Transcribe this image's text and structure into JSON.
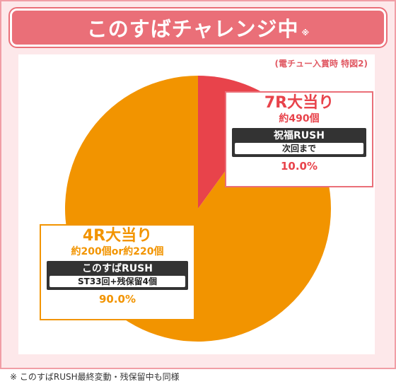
{
  "header": {
    "title": "このすばチャレンジ中",
    "title_mark": "※"
  },
  "note_top": "(電チュー入賞時 特図2)",
  "colors": {
    "red": "#e8434b",
    "orange": "#f29400",
    "frame": "#f19ea6",
    "title_bg": "#ea6f78"
  },
  "chart_data": {
    "type": "pie",
    "slices": [
      {
        "label": "7R大当り",
        "value": 10.0,
        "value_label": "10.0%",
        "payout": "約490個",
        "mode": "祝福RUSH",
        "mode_detail": "次回まで",
        "color": "#e8434b"
      },
      {
        "label": "4R大当り",
        "value": 90.0,
        "value_label": "90.0%",
        "payout": "約200個or約220個",
        "mode": "このすばRUSH",
        "mode_detail": "ST33回+残保留4個",
        "color": "#f29400"
      }
    ]
  },
  "footnote": "※ このすばRUSH最終変動・残保留中も同様"
}
